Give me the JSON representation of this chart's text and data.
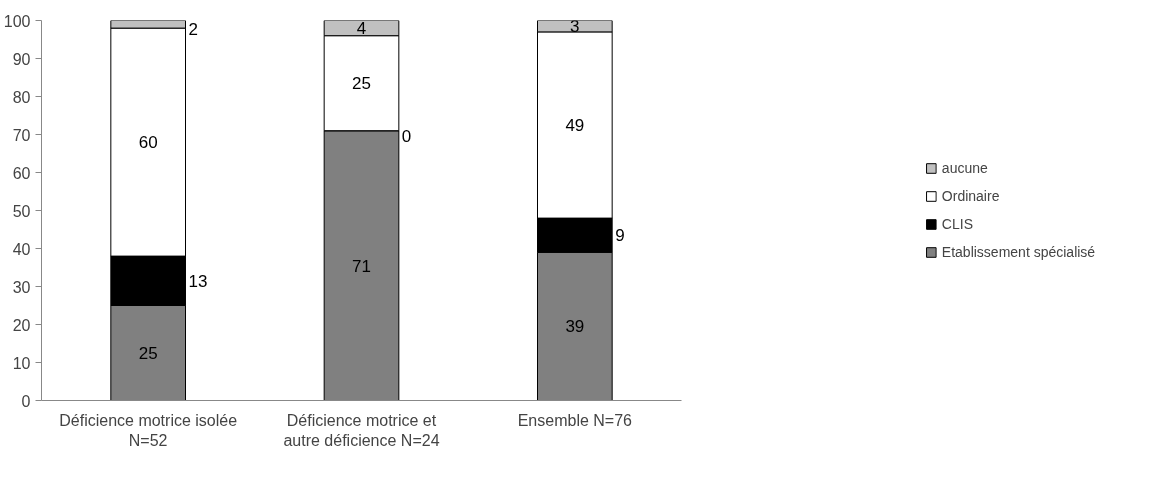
{
  "chart_data": {
    "type": "bar",
    "stacked": true,
    "categories": [
      "Déficience motrice isolée N=52",
      "Déficience motrice et autre déficience N=24",
      "Ensemble N=76"
    ],
    "series": [
      {
        "name": "Etablissement spécialisé",
        "color": "#808080",
        "values": [
          25,
          71,
          39
        ]
      },
      {
        "name": "CLIS",
        "color": "#000000",
        "values": [
          13,
          0,
          9
        ]
      },
      {
        "name": "Ordinaire",
        "color": "#ffffff",
        "values": [
          60,
          25,
          49
        ]
      },
      {
        "name": "aucune",
        "color": "#c0c0c0",
        "values": [
          2,
          4,
          3
        ]
      }
    ],
    "ylim": [
      0,
      100
    ],
    "yticks": [
      0,
      10,
      20,
      30,
      40,
      50,
      60,
      70,
      80,
      90,
      100
    ],
    "grid": false,
    "legend": "right",
    "data_labels": true
  }
}
